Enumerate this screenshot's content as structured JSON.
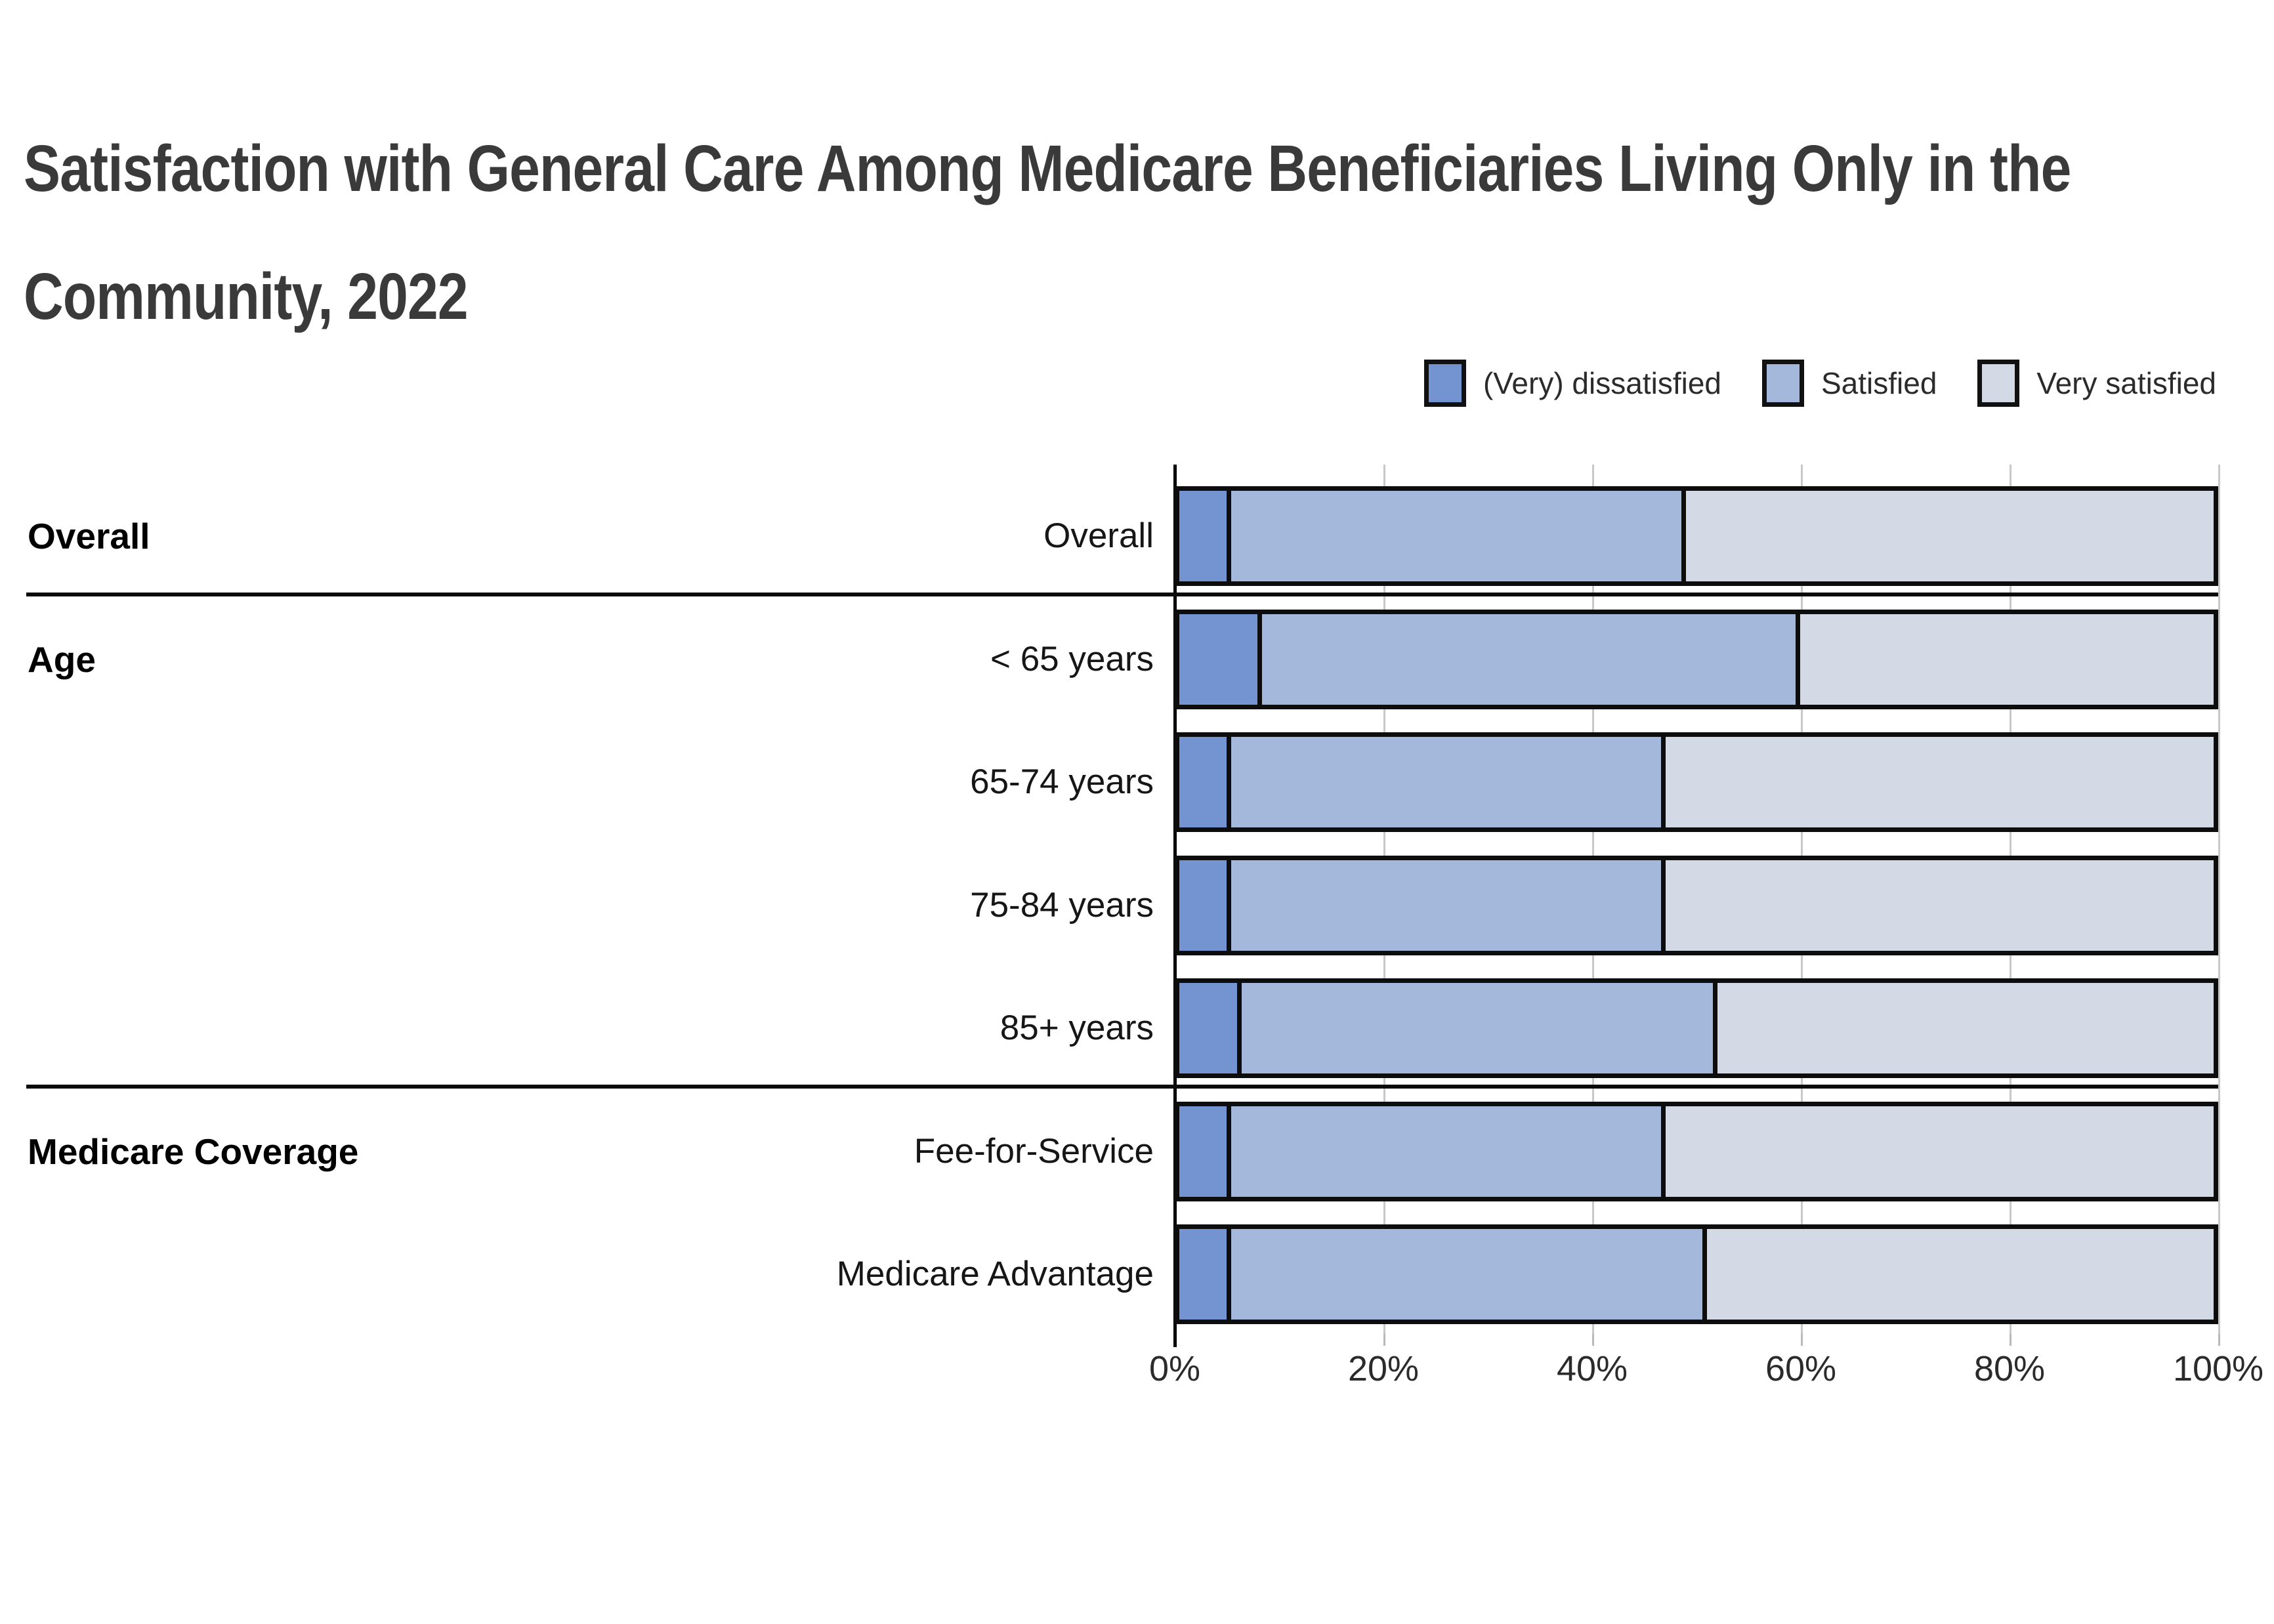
{
  "title": {
    "text": "Satisfaction with General Care Among Medicare Beneficiaries Living Only in the Community, 2022",
    "line1": "Satisfaction with General Care Among Medicare Beneficiaries Living Only in the",
    "line2": "Community, 2022"
  },
  "legend": {
    "items": [
      {
        "label": "(Very) dissatisfied",
        "color": "#7494d1"
      },
      {
        "label": "Satisfied",
        "color": "#a4b8dc"
      },
      {
        "label": "Very satisfied",
        "color": "#d3dae6"
      }
    ]
  },
  "chart_data": {
    "type": "bar",
    "orientation": "horizontal",
    "stacked": true,
    "units": "percent",
    "title": "Satisfaction with General Care Among Medicare Beneficiaries Living Only in the Community, 2022",
    "categories": [
      "Overall",
      "< 65 years",
      "65-74 years",
      "75-84 years",
      "85+ years",
      "Fee-for-Service",
      "Medicare Advantage"
    ],
    "groups": [
      {
        "label": "Overall",
        "anchor_row": 0,
        "rows": [
          0
        ]
      },
      {
        "label": "Age",
        "anchor_row": 1,
        "rows": [
          1,
          2,
          3,
          4
        ]
      },
      {
        "label": "Medicare Coverage",
        "anchor_row": 5,
        "rows": [
          5,
          6
        ]
      }
    ],
    "series": [
      {
        "name": "(Very) dissatisfied",
        "color": "#7494d1",
        "values": [
          5,
          8,
          5,
          5,
          6,
          5,
          5
        ]
      },
      {
        "name": "Satisfied",
        "color": "#a4b8dc",
        "values": [
          44,
          52,
          42,
          42,
          46,
          42,
          46
        ]
      },
      {
        "name": "Very satisfied",
        "color": "#d3dae6",
        "values": [
          51,
          40,
          53,
          53,
          48,
          53,
          49
        ]
      }
    ],
    "xlim": [
      0,
      100
    ],
    "x_ticks": [
      "0%",
      "20%",
      "40%",
      "60%",
      "80%",
      "100%"
    ],
    "grid": true,
    "legend_position": "top-right",
    "bar_border_color": "#0d0d0d",
    "gridline_color": "#c8c8c8",
    "separator_color": "#0a0a0a",
    "title_color": "#3a3a3a"
  }
}
